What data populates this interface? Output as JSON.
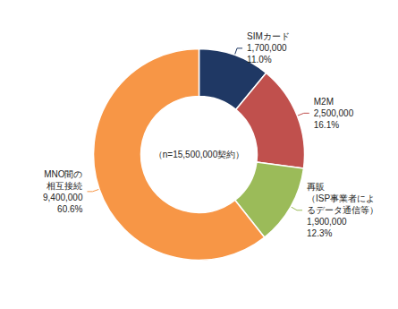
{
  "chart_data": {
    "type": "donut",
    "categories": [
      "SIMカード",
      "M2M",
      "再販\n（ISP事業者によ\nるデータ通信等）",
      "MNO間の\n相互接続"
    ],
    "values": [
      1700000,
      2500000,
      1900000,
      9400000
    ],
    "value_labels": [
      "1,700,000",
      "2,500,000",
      "1,900,000",
      "9,400,000"
    ],
    "shares": [
      11.0,
      16.1,
      12.3,
      60.6
    ],
    "share_labels": [
      "11.0%",
      "16.1%",
      "12.3%",
      "60.6%"
    ],
    "colors": [
      "#1f3864",
      "#c0504d",
      "#9bbb59",
      "#f79646"
    ],
    "annotations": [
      "（n=15,500,000契約）"
    ],
    "data_labels": true,
    "legend": false
  }
}
